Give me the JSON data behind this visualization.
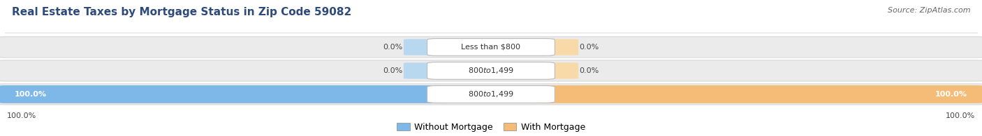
{
  "title": "Real Estate Taxes by Mortgage Status in Zip Code 59082",
  "source": "Source: ZipAtlas.com",
  "bars": [
    {
      "label": "Less than $800",
      "without_mortgage": 0.0,
      "with_mortgage": 0.0
    },
    {
      "label": "$800 to $1,499",
      "without_mortgage": 0.0,
      "with_mortgage": 0.0
    },
    {
      "label": "$800 to $1,499",
      "without_mortgage": 100.0,
      "with_mortgage": 100.0
    }
  ],
  "color_without": "#7EB8E8",
  "color_with": "#F5BC78",
  "color_without_light": "#B8D8F0",
  "color_with_light": "#F8D9A8",
  "bg_bar_color": "#EBEBEB",
  "title_fontsize": 11,
  "source_fontsize": 8,
  "value_fontsize": 8,
  "label_fontsize": 8,
  "legend_fontsize": 9,
  "title_color": "#2E4A7A",
  "source_color": "#666666",
  "fig_bg": "#FFFFFF"
}
